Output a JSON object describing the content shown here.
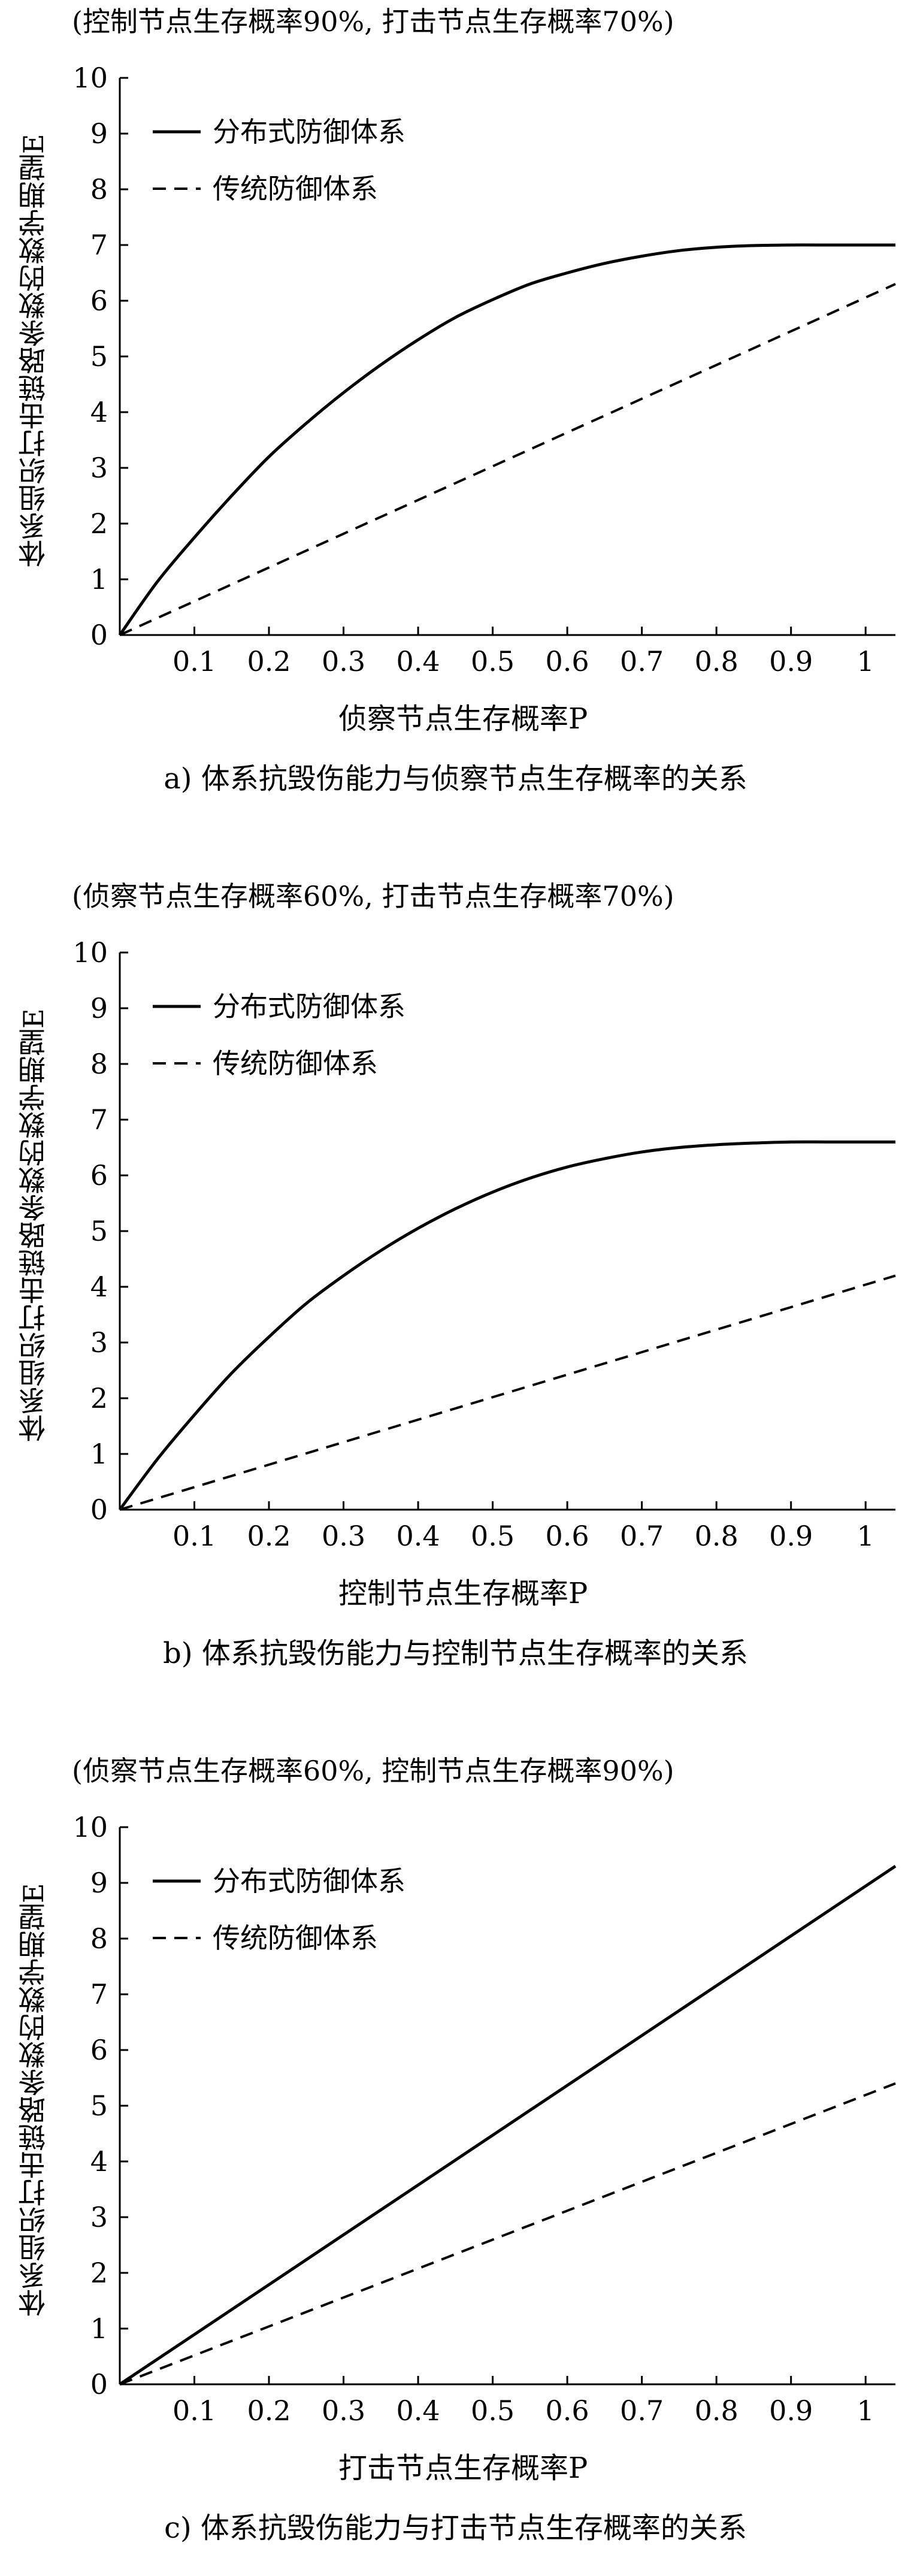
{
  "charts": [
    {
      "condition": "(控制节点生存概率90%, 打击节点生存概率70%)",
      "caption": "a) 体系抗毁伤能力与侦察节点生存概率的关系",
      "chart_data": {
        "type": "line",
        "title": "",
        "xlabel": "侦察节点生存概率P",
        "ylabel": "体系组织打击链路条数的数学期望E",
        "xlim": [
          0,
          1.04
        ],
        "ylim": [
          0,
          10
        ],
        "x_ticks": [
          "0.1",
          "0.2",
          "0.3",
          "0.4",
          "0.5",
          "0.6",
          "0.7",
          "0.8",
          "0.9",
          "1"
        ],
        "y_ticks": [
          "0",
          "1",
          "2",
          "3",
          "4",
          "5",
          "6",
          "7",
          "8",
          "9",
          "10"
        ],
        "legend_position": "top-left",
        "grid": false,
        "series": [
          {
            "name": "分布式防御体系",
            "style": "solid",
            "x": [
              0,
              0.05,
              0.1,
              0.15,
              0.2,
              0.25,
              0.3,
              0.35,
              0.4,
              0.45,
              0.5,
              0.55,
              0.6,
              0.65,
              0.7,
              0.75,
              0.8,
              0.85,
              0.9,
              0.95,
              1.0,
              1.04
            ],
            "y": [
              0,
              0.95,
              1.75,
              2.5,
              3.2,
              3.8,
              4.35,
              4.85,
              5.3,
              5.7,
              6.02,
              6.3,
              6.5,
              6.67,
              6.8,
              6.9,
              6.96,
              6.99,
              7.0,
              7.0,
              7.0,
              7.0
            ]
          },
          {
            "name": "传统防御体系",
            "style": "dashed",
            "x": [
              0,
              1.04
            ],
            "y": [
              0,
              6.3
            ]
          }
        ]
      }
    },
    {
      "condition": "(侦察节点生存概率60%, 打击节点生存概率70%)",
      "caption": "b) 体系抗毁伤能力与控制节点生存概率的关系",
      "chart_data": {
        "type": "line",
        "title": "",
        "xlabel": "控制节点生存概率P",
        "ylabel": "体系组织打击链路条数的数学期望E",
        "xlim": [
          0,
          1.04
        ],
        "ylim": [
          0,
          10
        ],
        "x_ticks": [
          "0.1",
          "0.2",
          "0.3",
          "0.4",
          "0.5",
          "0.6",
          "0.7",
          "0.8",
          "0.9",
          "1"
        ],
        "y_ticks": [
          "0",
          "1",
          "2",
          "3",
          "4",
          "5",
          "6",
          "7",
          "8",
          "9",
          "10"
        ],
        "legend_position": "top-left",
        "grid": false,
        "series": [
          {
            "name": "分布式防御体系",
            "style": "solid",
            "x": [
              0,
              0.05,
              0.1,
              0.15,
              0.2,
              0.25,
              0.3,
              0.35,
              0.4,
              0.45,
              0.5,
              0.55,
              0.6,
              0.65,
              0.7,
              0.75,
              0.8,
              0.85,
              0.9,
              0.95,
              1.0,
              1.04
            ],
            "y": [
              0,
              0.9,
              1.7,
              2.45,
              3.1,
              3.7,
              4.2,
              4.65,
              5.05,
              5.4,
              5.7,
              5.95,
              6.15,
              6.3,
              6.42,
              6.5,
              6.55,
              6.58,
              6.6,
              6.6,
              6.6,
              6.6
            ]
          },
          {
            "name": "传统防御体系",
            "style": "dashed",
            "x": [
              0,
              1.04
            ],
            "y": [
              0,
              4.2
            ]
          }
        ]
      }
    },
    {
      "condition": "(侦察节点生存概率60%, 控制节点生存概率90%)",
      "caption": "c) 体系抗毁伤能力与打击节点生存概率的关系",
      "chart_data": {
        "type": "line",
        "title": "",
        "xlabel": "打击节点生存概率P",
        "ylabel": "体系组织打击链路条数的数学期望E",
        "xlim": [
          0,
          1.04
        ],
        "ylim": [
          0,
          10
        ],
        "x_ticks": [
          "0.1",
          "0.2",
          "0.3",
          "0.4",
          "0.5",
          "0.6",
          "0.7",
          "0.8",
          "0.9",
          "1"
        ],
        "y_ticks": [
          "0",
          "1",
          "2",
          "3",
          "4",
          "5",
          "6",
          "7",
          "8",
          "9",
          "10"
        ],
        "legend_position": "top-left",
        "grid": false,
        "series": [
          {
            "name": "分布式防御体系",
            "style": "solid",
            "x": [
              0,
              1.04
            ],
            "y": [
              0,
              9.3
            ]
          },
          {
            "name": "传统防御体系",
            "style": "dashed",
            "x": [
              0,
              1.04
            ],
            "y": [
              0,
              5.4
            ]
          }
        ]
      }
    }
  ]
}
